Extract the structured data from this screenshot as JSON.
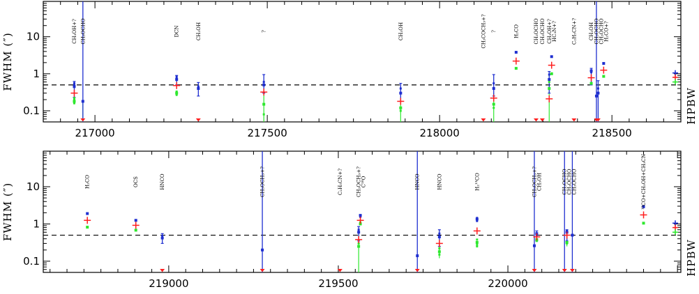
{
  "chart_data": [
    {
      "type": "scatter",
      "ylabel": "FWHM (″)",
      "yscale": "log",
      "xlim": [
        216850,
        218700
      ],
      "ylim": [
        0.05,
        90
      ],
      "xticks": [
        217000,
        217500,
        218000,
        218500
      ],
      "xtick_labels": [
        "217000",
        "217500",
        "218000",
        "218500"
      ],
      "yticks": [
        0.1,
        1,
        10
      ],
      "ytick_labels": [
        "0.1",
        "1",
        "10"
      ],
      "hpbw": 0.5,
      "hpbw_label": "HPBW",
      "hpbw_markers": {
        "blue": 1.05,
        "red": 0.8,
        "green": 0.6
      },
      "lines": [
        {
          "x": 216940,
          "label": "CH₃OH+?",
          "red": 0.3,
          "blue": 0.45,
          "green": 0.18,
          "blue_lo": 0.23,
          "blue_hi": 0.62,
          "green_lo": 0.15,
          "green_hi": 0.24,
          "blue_pts": [
            0.55,
            0.5
          ],
          "green_pts": [
            0.22,
            0.2,
            0.17,
            0.16
          ]
        },
        {
          "x": 216965,
          "label": "CH₃OCHO",
          "red": 0.05,
          "blue": 0.18,
          "blue_lo": 0.05,
          "blue_hi": 90,
          "green_lo": 0.05,
          "green_hi": 0.17,
          "blue_pts": [],
          "green_pts": []
        },
        {
          "x": 217237,
          "label": "DCN",
          "red": 0.48,
          "blue": 0.7,
          "green": 0.3,
          "blue_lo": 0.5,
          "blue_hi": 0.9,
          "green_lo": 0.25,
          "green_hi": 0.35,
          "blue_pts": [
            0.85,
            0.75
          ],
          "green_pts": [
            0.33,
            0.27
          ]
        },
        {
          "x": 217300,
          "label": "CH₃OH",
          "red": 0.05,
          "blue": 0.4,
          "blue_lo": 0.25,
          "blue_hi": 0.58,
          "blue_pts": [
            0.45
          ],
          "green_pts": []
        },
        {
          "x": 217490,
          "label": "?",
          "red": 0.32,
          "blue": 0.5,
          "green": 0.15,
          "blue_lo": 0.3,
          "blue_hi": 0.95,
          "green_lo": 0.05,
          "green_hi": 0.3,
          "blue_pts": [
            0.6
          ],
          "green_pts": [
            0.08
          ]
        },
        {
          "x": 217887,
          "label": "CH₃OH",
          "red": 0.18,
          "blue": 0.3,
          "green": 0.12,
          "blue_lo": 0.18,
          "blue_hi": 0.55,
          "green_lo": 0.05,
          "green_hi": 0.2,
          "blue_pts": [
            0.4
          ],
          "green_pts": [
            0.1
          ]
        },
        {
          "x": 218127,
          "label": "CH₃COCH₃+?",
          "red": 0.05,
          "blue_pts": [],
          "green_pts": []
        },
        {
          "x": 218157,
          "label": "?",
          "red": 0.22,
          "blue": 0.4,
          "green": 0.15,
          "blue_lo": 0.25,
          "blue_hi": 0.95,
          "green_lo": 0.05,
          "green_hi": 0.3,
          "blue_pts": [
            0.55
          ],
          "green_pts": [
            0.12
          ]
        },
        {
          "x": 218222,
          "label": "H₂CO",
          "red": 2.2,
          "blue": 3.8,
          "green": 1.4,
          "blue_pts": [],
          "green_pts": []
        },
        {
          "x": 218280,
          "label": "CH₃OCHO",
          "red": 0.05,
          "blue_pts": [],
          "green_pts": []
        },
        {
          "x": 218298,
          "label": "CH₃OCHO",
          "red": 0.05,
          "blue_pts": [],
          "green_pts": []
        },
        {
          "x": 218318,
          "label": "CH₃OH+?",
          "red": 0.21,
          "blue": 0.7,
          "green": 0.4,
          "blue_lo": 0.3,
          "blue_hi": 1.15,
          "green_lo": 0.05,
          "green_hi": 0.9,
          "blue_pts": [
            0.95
          ],
          "green_pts": [
            0.6
          ]
        },
        {
          "x": 218325,
          "label": "HC₃N+?",
          "red": 1.7,
          "blue": 2.9,
          "green": 1.0,
          "blue_pts": [],
          "green_pts": []
        },
        {
          "x": 218390,
          "label": "C₂H₅CN+?",
          "red": 0.05,
          "blue_pts": [],
          "green_pts": []
        },
        {
          "x": 218440,
          "label": "CH₃OH",
          "red": 0.78,
          "blue": 1.2,
          "green": 0.55,
          "blue_lo": 0.5,
          "blue_hi": 1.4,
          "blue_pts": [
            1.1
          ],
          "green_pts": []
        },
        {
          "x": 218455,
          "label": "CH₃OCHO",
          "red": 0.05,
          "blue": 0.25,
          "blue_lo": 0.05,
          "blue_hi": 90,
          "blue_pts": [],
          "green_pts": []
        },
        {
          "x": 218460,
          "label": "CH₃OCHO",
          "red": 0.05,
          "blue": 0.3,
          "blue_lo": 0.05,
          "blue_hi": 0.65,
          "blue_pts": [
            0.4
          ],
          "green_pts": []
        },
        {
          "x": 218476,
          "label": "H₂CO+?",
          "red": 1.25,
          "blue": 1.9,
          "green": 0.85,
          "blue_pts": [],
          "green_pts": []
        }
      ]
    },
    {
      "type": "scatter",
      "ylabel": "FWHM (″)",
      "yscale": "log",
      "xlim": [
        218630,
        220510
      ],
      "ylim": [
        0.05,
        90
      ],
      "xticks": [
        219000,
        219500,
        220000
      ],
      "xtick_labels": [
        "219000",
        "219500",
        "220000"
      ],
      "yticks": [
        0.1,
        1,
        10
      ],
      "ytick_labels": [
        "0.1",
        "1",
        "10"
      ],
      "hpbw": 0.5,
      "hpbw_label": "HPBW",
      "hpbw_markers": {
        "blue": 1.05,
        "red": 0.8,
        "green": 0.6
      },
      "lines": [
        {
          "x": 218760,
          "label": "H₂CO",
          "red": 1.25,
          "blue": 1.9,
          "green": 0.82,
          "blue_pts": [],
          "green_pts": []
        },
        {
          "x": 218903,
          "label": "OCS",
          "red": 0.92,
          "blue": 1.25,
          "green": 0.68,
          "blue_pts": [],
          "green_pts": []
        },
        {
          "x": 218981,
          "label": "HNCO",
          "red": 0.05,
          "blue": 0.42,
          "blue_lo": 0.3,
          "blue_hi": 0.55,
          "blue_pts": [
            0.48
          ],
          "green_pts": []
        },
        {
          "x": 219276,
          "label": "CH₃OCH₃+?",
          "red": 0.05,
          "blue": 0.2,
          "blue_lo": 0.05,
          "blue_hi": 90,
          "blue_pts": [],
          "green_pts": []
        },
        {
          "x": 219505,
          "label": "C₂H₅CN+?",
          "red": 0.05,
          "blue_pts": [],
          "green_pts": []
        },
        {
          "x": 219560,
          "label": "CH₃OCH₃+?",
          "red": 0.38,
          "blue": 0.6,
          "green": 0.25,
          "blue_lo": 0.35,
          "blue_hi": 0.85,
          "green_lo": 0.05,
          "green_hi": 0.55,
          "blue_pts": [
            0.7
          ],
          "green_pts": [
            0.3
          ]
        },
        {
          "x": 219565,
          "label": "C¹⁸O",
          "red": 1.25,
          "blue": 1.7,
          "green": 1.0,
          "blue_pts": [
            1.55
          ],
          "green_pts": [
            1.1
          ]
        },
        {
          "x": 219733,
          "label": "HNCO",
          "red": 0.05,
          "blue": 0.14,
          "blue_lo": 0.05,
          "blue_hi": 90,
          "blue_pts": [],
          "green_pts": []
        },
        {
          "x": 219798,
          "label": "HNCO",
          "red": 0.3,
          "blue": 0.45,
          "green": 0.18,
          "blue_lo": 0.25,
          "blue_hi": 0.7,
          "green_lo": 0.12,
          "green_hi": 0.3,
          "blue_pts": [
            0.55
          ],
          "green_pts": [
            0.22,
            0.15
          ]
        },
        {
          "x": 219909,
          "label": "H₂¹³CO",
          "red": 0.65,
          "blue": 1.35,
          "green": 0.32,
          "blue_pts": [
            1.45,
            1.2
          ],
          "green_pts": [
            0.38,
            0.28,
            0.25
          ]
        },
        {
          "x": 220078,
          "label": "CH₃OCH₃+?",
          "red": 0.05,
          "blue": 0.26,
          "blue_lo": 0.05,
          "blue_hi": 90,
          "blue_pts": [],
          "green_pts": []
        },
        {
          "x": 220085,
          "label": "CH₃OH",
          "red": 0.45,
          "blue": 0.55,
          "green": 0.38,
          "blue_lo": 0.35,
          "blue_hi": 0.65,
          "blue_pts": [
            0.5
          ],
          "green_pts": [
            0.35
          ]
        },
        {
          "x": 220167,
          "label": "CH₃OCHO",
          "red": 0.05,
          "blue_lo": 0.05,
          "blue_hi": 90,
          "blue_pts": [],
          "green_pts": []
        },
        {
          "x": 220174,
          "label": "CH₃OCHO",
          "red": 0.5,
          "blue": 0.6,
          "green": 0.32,
          "blue_lo": 0.35,
          "blue_hi": 0.7,
          "green_lo": 0.25,
          "green_hi": 0.45,
          "blue_pts": [
            0.65
          ],
          "green_pts": [
            0.3
          ]
        },
        {
          "x": 220190,
          "label": "CH₃OCHO",
          "red": 0.05,
          "blue": 0.5,
          "blue_lo": 0.05,
          "blue_hi": 90,
          "blue_pts": [],
          "green_pts": []
        },
        {
          "x": 220400,
          "label": "¹³CO+CH₃OH+CH₃CN",
          "red": 1.75,
          "blue": 2.9,
          "green": 1.05,
          "blue_pts": [],
          "green_pts": []
        }
      ]
    }
  ]
}
